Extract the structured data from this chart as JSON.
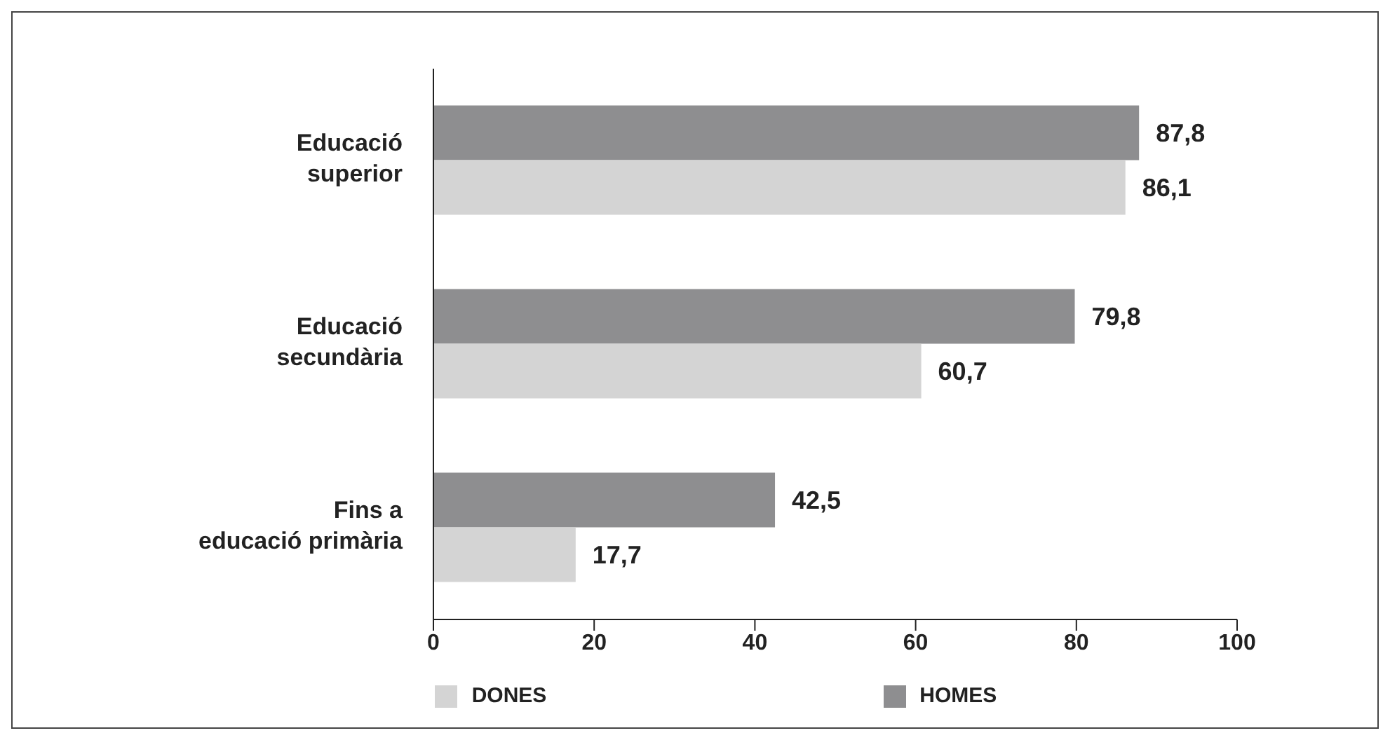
{
  "chart_data": {
    "type": "bar",
    "orientation": "horizontal",
    "categories": [
      "Educació\nsuperior",
      "Educació\nsecundària",
      "Fins a\neducació primària"
    ],
    "series": [
      {
        "name": "DONES",
        "color": "#d4d4d4",
        "values": [
          86.1,
          60.7,
          17.7
        ],
        "value_labels": [
          "86,1",
          "60,7",
          "17,7"
        ]
      },
      {
        "name": "HOMES",
        "color": "#8e8e90",
        "values": [
          87.8,
          79.8,
          42.5
        ],
        "value_labels": [
          "87,8",
          "79,8",
          "42,5"
        ]
      }
    ],
    "xlim": [
      0,
      100
    ],
    "xticks": [
      0,
      20,
      40,
      60,
      80,
      100
    ],
    "grid": false,
    "legend": "bottom"
  }
}
